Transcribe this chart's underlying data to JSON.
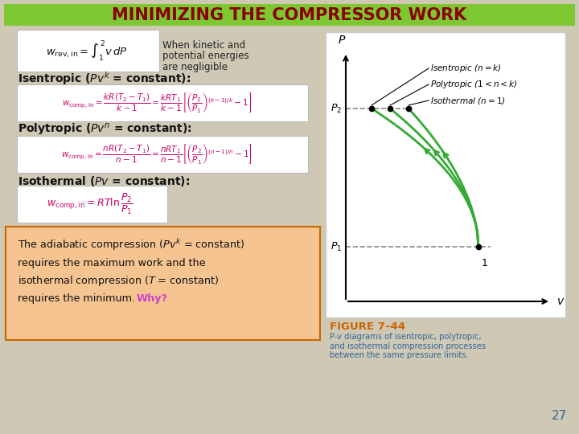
{
  "title": "MINIMIZING THE COMPRESSOR WORK",
  "title_bg": "#7DC832",
  "title_fg": "#8B0000",
  "bg_color": "#CEC8B4",
  "slide_bg": "#CEC8B4",
  "formula_color": "#CC0066",
  "label_color": "#111111",
  "bottom_box_bg": "#F5C490",
  "bottom_box_border": "#CC6600",
  "bottom_why_color": "#CC44CC",
  "figure_label": "FIGURE 7–44",
  "figure_caption": "P-v diagrams of isentropic, polytropic,\nand isothermal compression processes\nbetween the same pressure limits.",
  "figure_label_color": "#CC6600",
  "figure_caption_color": "#336699",
  "page_number": "27",
  "page_number_color": "#336699"
}
